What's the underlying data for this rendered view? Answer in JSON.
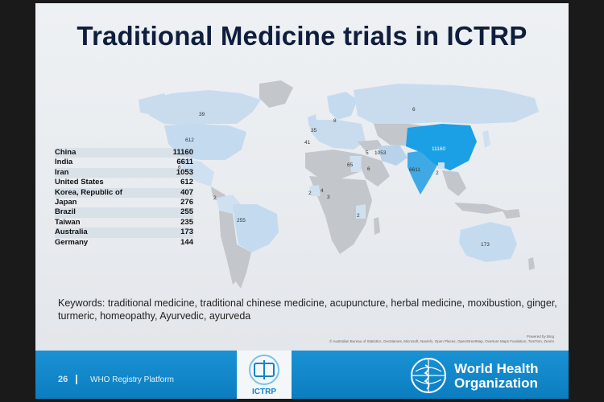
{
  "title": "Traditional Medicine trials in ICTRP",
  "country_table": [
    {
      "country": "China",
      "count": "11160"
    },
    {
      "country": "India",
      "count": "6611"
    },
    {
      "country": "Iran",
      "count": "1053"
    },
    {
      "country": "United States",
      "count": "612"
    },
    {
      "country": "Korea, Republic of",
      "count": "407"
    },
    {
      "country": "Japan",
      "count": "276"
    },
    {
      "country": "Brazil",
      "count": "255"
    },
    {
      "country": "Taiwan",
      "count": "235"
    },
    {
      "country": "Australia",
      "count": "173"
    },
    {
      "country": "Germany",
      "count": "144"
    }
  ],
  "map_labels": {
    "canada": "39",
    "usa": "612",
    "mexico": "6",
    "colombia": "2",
    "brazil": "255",
    "uk": "35",
    "scandinavia": "8",
    "italy": "41",
    "russia": "6",
    "turkey": "5",
    "iran": "1053",
    "egypt": "65",
    "saudi": "6",
    "china": "11160",
    "india": "6611",
    "bangladesh": "2",
    "nigeria": "2",
    "cameroon": "4",
    "congo": "3",
    "tanzania": "2",
    "australia": "173"
  },
  "keywords": "Keywords: traditional medicine, traditional chinese medicine, acupuncture, herbal medicine, moxibustion, ginger, turmeric, homeopathy, Ayurvedic, ayurveda",
  "powered_by": "Powered by Bing",
  "credit": "© Australian Bureau of Statistics, GeoNames, Microsoft, Navinfo, Open Places, OpenStreetMap, Overture Maps Fundation, TomTom, Zenrin",
  "footer": {
    "page_number": "26",
    "platform": "WHO Registry Platform",
    "ictrp_logo_text": "ICTRP",
    "org_name_line1": "World Health",
    "org_name_line2": "Organization"
  },
  "colors": {
    "footer_blue": "#1184c8",
    "china_fill": "#1ba0e6",
    "india_fill": "#3fa9e6",
    "low_fill": "#c4dbef",
    "title": "#0f1e3d"
  }
}
